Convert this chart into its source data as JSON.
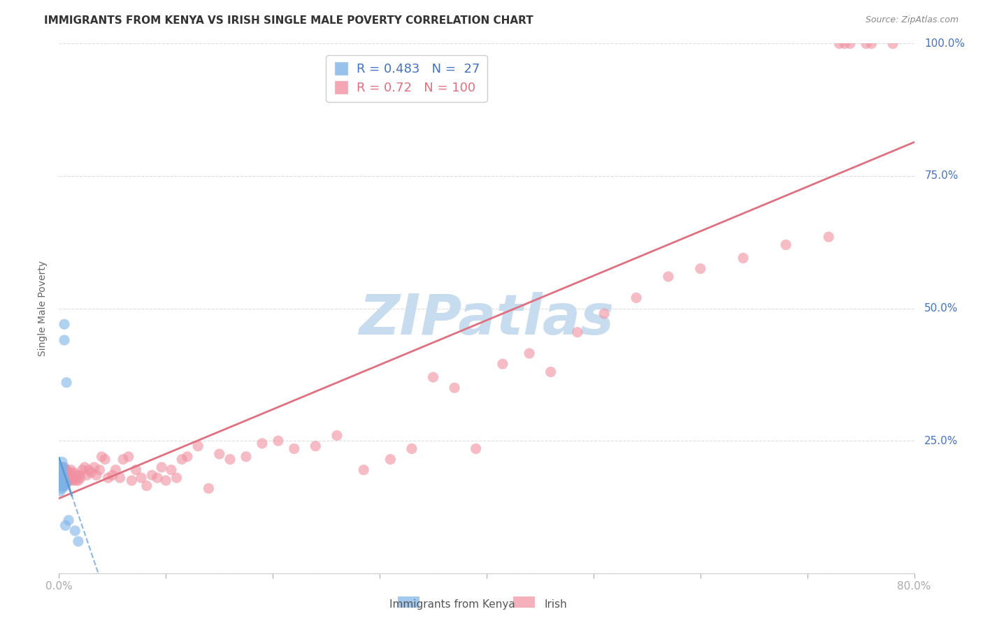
{
  "title": "IMMIGRANTS FROM KENYA VS IRISH SINGLE MALE POVERTY CORRELATION CHART",
  "source": "Source: ZipAtlas.com",
  "ylabel": "Single Male Poverty",
  "xlim": [
    0.0,
    0.8
  ],
  "ylim": [
    0.0,
    1.0
  ],
  "xticks": [
    0.0,
    0.1,
    0.2,
    0.3,
    0.4,
    0.5,
    0.6,
    0.7,
    0.8
  ],
  "xticklabels": [
    "0.0%",
    "",
    "",
    "",
    "",
    "",
    "",
    "",
    "80.0%"
  ],
  "yticks": [
    0.0,
    0.25,
    0.5,
    0.75,
    1.0
  ],
  "yticklabels": [
    "",
    "25.0%",
    "50.0%",
    "75.0%",
    "100.0%"
  ],
  "kenya_color": "#7EB3E8",
  "irish_color": "#F090A0",
  "kenya_R": 0.483,
  "kenya_N": 27,
  "irish_R": 0.72,
  "irish_N": 100,
  "legend_label_kenya": "Immigrants from Kenya",
  "legend_label_irish": "Irish",
  "watermark": "ZIPatlas",
  "watermark_color": "#C8DCF0",
  "kenya_line_color": "#5B9BD5",
  "kenya_reg_color": "#5B9BD5",
  "irish_line_color": "#E07080",
  "kenya_scatter_x": [
    0.001,
    0.001,
    0.001,
    0.002,
    0.002,
    0.002,
    0.002,
    0.003,
    0.003,
    0.003,
    0.003,
    0.003,
    0.003,
    0.004,
    0.004,
    0.004,
    0.004,
    0.005,
    0.005,
    0.005,
    0.006,
    0.006,
    0.006,
    0.007,
    0.009,
    0.015,
    0.018
  ],
  "kenya_scatter_y": [
    0.175,
    0.165,
    0.155,
    0.2,
    0.19,
    0.175,
    0.165,
    0.21,
    0.185,
    0.175,
    0.17,
    0.165,
    0.16,
    0.2,
    0.185,
    0.175,
    0.165,
    0.47,
    0.44,
    0.175,
    0.17,
    0.165,
    0.09,
    0.36,
    0.1,
    0.08,
    0.06
  ],
  "irish_scatter_x": [
    0.002,
    0.003,
    0.003,
    0.003,
    0.003,
    0.004,
    0.004,
    0.004,
    0.004,
    0.005,
    0.005,
    0.005,
    0.005,
    0.006,
    0.006,
    0.006,
    0.007,
    0.007,
    0.007,
    0.007,
    0.008,
    0.008,
    0.008,
    0.009,
    0.009,
    0.01,
    0.01,
    0.011,
    0.011,
    0.012,
    0.013,
    0.013,
    0.014,
    0.015,
    0.016,
    0.017,
    0.018,
    0.019,
    0.02,
    0.022,
    0.024,
    0.026,
    0.028,
    0.03,
    0.033,
    0.035,
    0.038,
    0.04,
    0.043,
    0.046,
    0.05,
    0.053,
    0.057,
    0.06,
    0.065,
    0.068,
    0.072,
    0.077,
    0.082,
    0.087,
    0.092,
    0.096,
    0.1,
    0.105,
    0.11,
    0.115,
    0.12,
    0.13,
    0.14,
    0.15,
    0.16,
    0.175,
    0.19,
    0.205,
    0.22,
    0.24,
    0.26,
    0.285,
    0.31,
    0.33,
    0.35,
    0.37,
    0.39,
    0.415,
    0.44,
    0.46,
    0.485,
    0.51,
    0.54,
    0.57,
    0.6,
    0.64,
    0.68,
    0.72,
    0.74,
    0.76,
    0.78,
    0.73,
    0.755,
    0.735
  ],
  "irish_scatter_y": [
    0.195,
    0.185,
    0.175,
    0.165,
    0.2,
    0.185,
    0.175,
    0.165,
    0.19,
    0.195,
    0.185,
    0.175,
    0.2,
    0.18,
    0.175,
    0.19,
    0.18,
    0.175,
    0.17,
    0.195,
    0.185,
    0.18,
    0.175,
    0.185,
    0.18,
    0.19,
    0.175,
    0.18,
    0.195,
    0.185,
    0.175,
    0.18,
    0.19,
    0.18,
    0.175,
    0.185,
    0.175,
    0.185,
    0.18,
    0.195,
    0.2,
    0.185,
    0.195,
    0.19,
    0.2,
    0.185,
    0.195,
    0.22,
    0.215,
    0.18,
    0.185,
    0.195,
    0.18,
    0.215,
    0.22,
    0.175,
    0.195,
    0.18,
    0.165,
    0.185,
    0.18,
    0.2,
    0.175,
    0.195,
    0.18,
    0.215,
    0.22,
    0.24,
    0.16,
    0.225,
    0.215,
    0.22,
    0.245,
    0.25,
    0.235,
    0.24,
    0.26,
    0.195,
    0.215,
    0.235,
    0.37,
    0.35,
    0.235,
    0.395,
    0.415,
    0.38,
    0.455,
    0.49,
    0.52,
    0.56,
    0.575,
    0.595,
    0.62,
    0.635,
    1.0,
    1.0,
    1.0,
    1.0,
    1.0,
    1.0
  ],
  "background_color": "#FFFFFF",
  "grid_color": "#DDDDDD",
  "title_fontsize": 11,
  "tick_color": "#4472C4",
  "title_color": "#333333"
}
